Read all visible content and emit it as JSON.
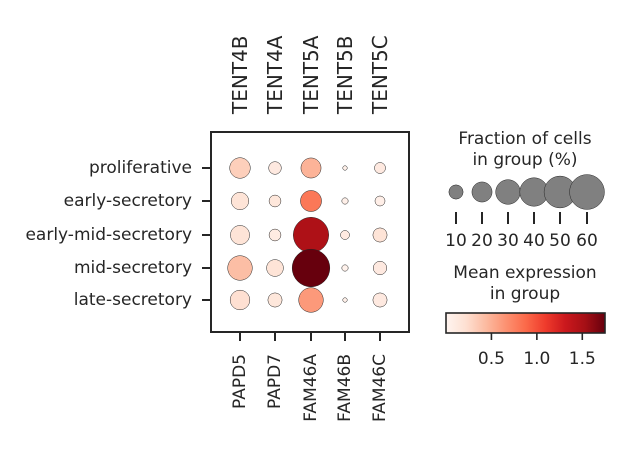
{
  "chart_data": {
    "type": "dotplot",
    "groups": [
      "proliferative",
      "early-secretory",
      "early-mid-secretory",
      "mid-secretory",
      "late-secretory"
    ],
    "genes": [
      "PAPD5",
      "PAPD7",
      "FAM46A",
      "FAM46B",
      "FAM46C"
    ],
    "gene_aliases": [
      "TENT4B",
      "TENT4A",
      "TENT5A",
      "TENT5B",
      "TENT5C"
    ],
    "fraction_pct": [
      [
        21,
        8,
        20,
        1,
        6
      ],
      [
        15,
        7,
        22,
        2,
        5
      ],
      [
        18,
        7,
        62,
        4,
        10
      ],
      [
        30,
        14,
        70,
        2,
        9
      ],
      [
        19,
        10,
        30,
        1,
        10
      ]
    ],
    "mean_expression": [
      [
        0.32,
        0.12,
        0.48,
        0.05,
        0.12
      ],
      [
        0.18,
        0.15,
        0.8,
        0.05,
        0.06
      ],
      [
        0.18,
        0.1,
        1.48,
        0.1,
        0.18
      ],
      [
        0.42,
        0.18,
        1.75,
        0.03,
        0.12
      ],
      [
        0.22,
        0.15,
        0.62,
        0.05,
        0.12
      ]
    ],
    "size_legend": {
      "title_lines": [
        "Fraction of cells",
        "in group (%)"
      ],
      "values": [
        10,
        20,
        30,
        40,
        50,
        60
      ],
      "labels": [
        "10",
        "20",
        "30",
        "40",
        "50",
        "60"
      ]
    },
    "color_legend": {
      "title_lines": [
        "Mean expression",
        "in group"
      ],
      "range": [
        0.0,
        1.75
      ],
      "ticks": [
        0.5,
        1.0,
        1.5
      ],
      "tick_labels": [
        "0.5",
        "1.0",
        "1.5"
      ],
      "colormap": "Reds",
      "colors": [
        "#fff5f0",
        "#fee0d2",
        "#fcbba1",
        "#fc9272",
        "#fb6a4a",
        "#ef3b2c",
        "#cb181d",
        "#a50f15",
        "#67000d"
      ]
    }
  }
}
